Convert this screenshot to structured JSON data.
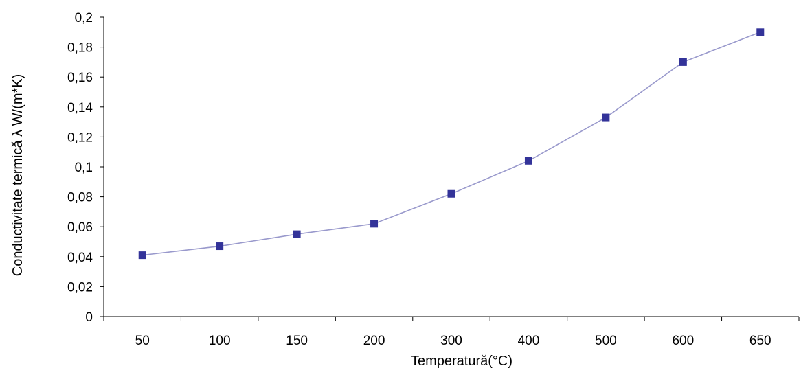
{
  "chart_data": {
    "type": "line",
    "title": "",
    "xlabel": "Temperatură(°C)",
    "ylabel": "Conductivitate termică λ W/(m*K)",
    "categories": [
      "50",
      "100",
      "150",
      "200",
      "300",
      "400",
      "500",
      "600",
      "650"
    ],
    "series": [
      {
        "values": [
          0.041,
          0.047,
          0.055,
          0.062,
          0.082,
          0.104,
          0.133,
          0.17,
          0.19
        ]
      }
    ],
    "ylim": [
      0,
      0.2
    ],
    "yticks": [
      "0",
      "0,02",
      "0,04",
      "0,06",
      "0,08",
      "0,1",
      "0,12",
      "0,14",
      "0,16",
      "0,18",
      "0,2"
    ],
    "grid": false,
    "legend": "none",
    "colors": {
      "line": "#9999cc",
      "marker": "#333399",
      "axis": "#000000"
    }
  }
}
